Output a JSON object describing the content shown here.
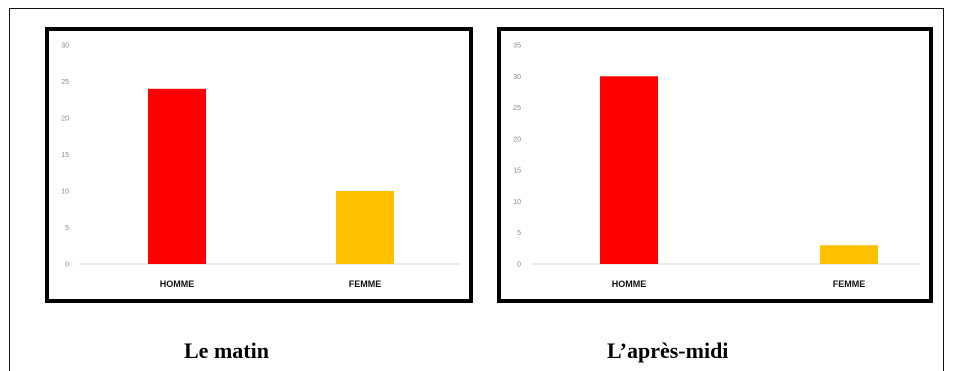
{
  "chart_data": [
    {
      "type": "bar",
      "title": "",
      "caption": "Le matin",
      "categories": [
        "HOMME",
        "FEMME"
      ],
      "values": [
        24,
        10
      ],
      "colors": [
        "#ff0000",
        "#ffc000"
      ],
      "ylim": [
        0,
        30
      ],
      "yticks": [
        "0",
        "5",
        "10",
        "15",
        "20",
        "25",
        "30"
      ],
      "grid": false,
      "legend": false
    },
    {
      "type": "bar",
      "title": "",
      "caption": "L’après-midi",
      "categories": [
        "HOMME",
        "FEMME"
      ],
      "values": [
        30,
        3
      ],
      "colors": [
        "#ff0000",
        "#ffc000"
      ],
      "ylim": [
        0,
        35
      ],
      "yticks": [
        "0",
        "5",
        "10",
        "15",
        "20",
        "25",
        "30",
        "35"
      ],
      "grid": false,
      "legend": false
    }
  ]
}
